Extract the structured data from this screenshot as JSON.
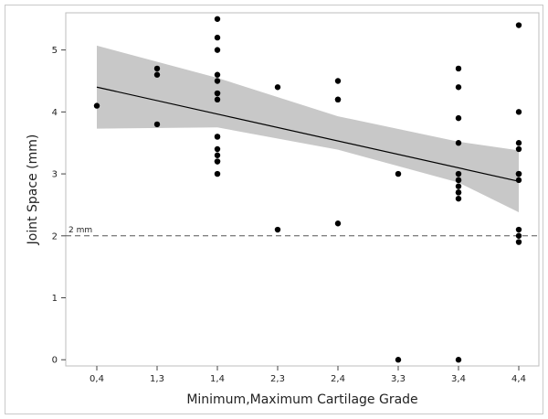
{
  "chart_data": {
    "type": "scatter",
    "title": "",
    "xlabel": "Minimum,Maximum Cartilage Grade",
    "ylabel": "Joint Space (mm)",
    "categories": [
      "0,4",
      "1,3",
      "1,4",
      "2,3",
      "2,4",
      "3,3",
      "3,4",
      "4,4"
    ],
    "y_ticks": [
      0,
      1,
      2,
      3,
      4,
      5
    ],
    "ylim": [
      -0.1,
      5.6
    ],
    "grid": false,
    "legend": "none",
    "points": [
      {
        "x": "0,4",
        "y": 4.1
      },
      {
        "x": "1,3",
        "y": 4.7
      },
      {
        "x": "1,3",
        "y": 4.6
      },
      {
        "x": "1,3",
        "y": 3.8
      },
      {
        "x": "1,4",
        "y": 5.5
      },
      {
        "x": "1,4",
        "y": 5.2
      },
      {
        "x": "1,4",
        "y": 5.0
      },
      {
        "x": "1,4",
        "y": 4.6
      },
      {
        "x": "1,4",
        "y": 4.5
      },
      {
        "x": "1,4",
        "y": 4.3
      },
      {
        "x": "1,4",
        "y": 4.3
      },
      {
        "x": "1,4",
        "y": 4.2
      },
      {
        "x": "1,4",
        "y": 3.6
      },
      {
        "x": "1,4",
        "y": 3.6
      },
      {
        "x": "1,4",
        "y": 3.4
      },
      {
        "x": "1,4",
        "y": 3.3
      },
      {
        "x": "1,4",
        "y": 3.2
      },
      {
        "x": "1,4",
        "y": 3.2
      },
      {
        "x": "1,4",
        "y": 3.0
      },
      {
        "x": "2,3",
        "y": 4.4
      },
      {
        "x": "2,3",
        "y": 2.1
      },
      {
        "x": "2,4",
        "y": 4.5
      },
      {
        "x": "2,4",
        "y": 4.2
      },
      {
        "x": "2,4",
        "y": 4.2
      },
      {
        "x": "2,4",
        "y": 2.2
      },
      {
        "x": "3,3",
        "y": 3.0
      },
      {
        "x": "3,3",
        "y": 0.0
      },
      {
        "x": "3,4",
        "y": 4.7
      },
      {
        "x": "3,4",
        "y": 4.4
      },
      {
        "x": "3,4",
        "y": 3.9
      },
      {
        "x": "3,4",
        "y": 3.5
      },
      {
        "x": "3,4",
        "y": 3.0
      },
      {
        "x": "3,4",
        "y": 2.9
      },
      {
        "x": "3,4",
        "y": 2.9
      },
      {
        "x": "3,4",
        "y": 2.8
      },
      {
        "x": "3,4",
        "y": 2.7
      },
      {
        "x": "3,4",
        "y": 2.7
      },
      {
        "x": "3,4",
        "y": 2.6
      },
      {
        "x": "3,4",
        "y": 0.0
      },
      {
        "x": "4,4",
        "y": 5.4
      },
      {
        "x": "4,4",
        "y": 4.0
      },
      {
        "x": "4,4",
        "y": 3.5
      },
      {
        "x": "4,4",
        "y": 3.4
      },
      {
        "x": "4,4",
        "y": 3.0
      },
      {
        "x": "4,4",
        "y": 3.0
      },
      {
        "x": "4,4",
        "y": 2.9
      },
      {
        "x": "4,4",
        "y": 2.1
      },
      {
        "x": "4,4",
        "y": 2.0
      },
      {
        "x": "4,4",
        "y": 1.9
      }
    ],
    "fit_line": {
      "start": {
        "x": "0,4",
        "y": 4.4
      },
      "end": {
        "x": "4,4",
        "y": 2.88
      }
    },
    "confidence_band": {
      "upper": [
        {
          "x": "0,4",
          "y": 5.07
        },
        {
          "x": "1,4",
          "y": 4.55
        },
        {
          "x": "2,4",
          "y": 3.93
        },
        {
          "x": "3,4",
          "y": 3.52
        },
        {
          "x": "4,4",
          "y": 3.38
        }
      ],
      "lower": [
        {
          "x": "0,4",
          "y": 3.73
        },
        {
          "x": "1,4",
          "y": 3.75
        },
        {
          "x": "2,4",
          "y": 3.39
        },
        {
          "x": "3,4",
          "y": 2.86
        },
        {
          "x": "4,4",
          "y": 2.38
        }
      ]
    },
    "reference_line": {
      "y": 2.0,
      "label": "2 mm",
      "style": "dashed"
    },
    "colors": {
      "points": "#000000",
      "band": "#c8c8c8",
      "line": "#000000",
      "reference": "#555555"
    }
  }
}
